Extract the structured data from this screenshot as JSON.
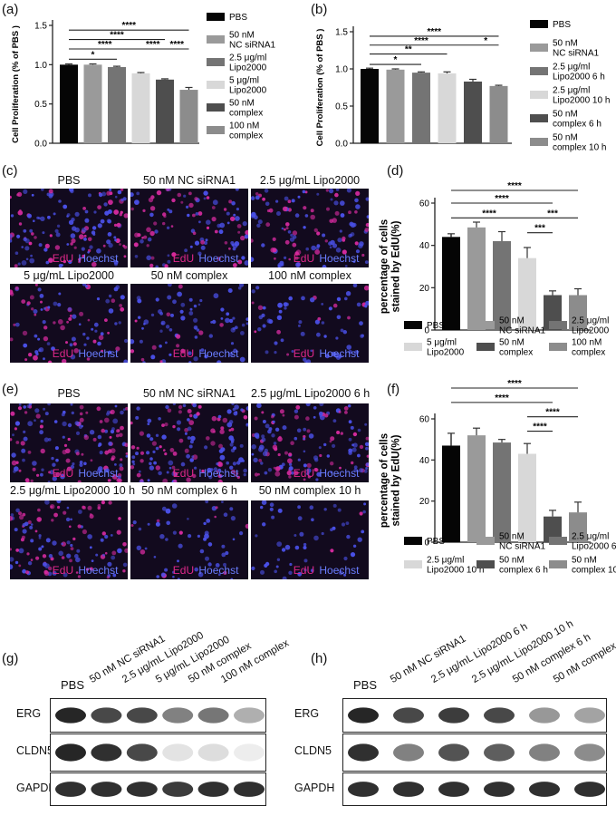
{
  "panels": {
    "a": "(a)",
    "b": "(b)",
    "c": "(c)",
    "d": "(d)",
    "e": "(e)",
    "f": "(f)",
    "g": "(g)",
    "h": "(h)"
  },
  "stain_labels": {
    "edu": "EdU",
    "hoechst": "Hoechst"
  },
  "colors": {
    "black": "#050505",
    "gray1": "#9a9a9a",
    "gray2": "#747474",
    "light": "#d8d8d8",
    "dark": "#4e4e4e",
    "mid": "#8c8c8c"
  },
  "chart_data": [
    {
      "panel": "a",
      "type": "bar",
      "ylabel": "Cell Proliferation (% of PBS )",
      "ylim": [
        0,
        1.5
      ],
      "yticks": [
        "0.0",
        "0.5",
        "1.0",
        "1.5"
      ],
      "values": [
        1.0,
        1.0,
        0.97,
        0.89,
        0.81,
        0.68
      ],
      "errors": [
        0.01,
        0.01,
        0.01,
        0.01,
        0.01,
        0.03
      ],
      "legend": [
        "PBS",
        "50 nM\nNC siRNA1",
        "2.5 μg/ml\nLipo2000",
        "5 μg/ml\nLipo2000",
        "50 nM\ncomplex",
        "100 nM\ncomplex"
      ],
      "significance": [
        {
          "from": 0,
          "to": 5,
          "label": "****",
          "y": 1.44
        },
        {
          "from": 0,
          "to": 4,
          "label": "****",
          "y": 1.32
        },
        {
          "from": 0,
          "to": 3,
          "label": "****",
          "y": 1.2
        },
        {
          "from": 3,
          "to": 4,
          "label": "****",
          "y": 1.2
        },
        {
          "from": 4,
          "to": 5,
          "label": "****",
          "y": 1.2
        },
        {
          "from": 0,
          "to": 2,
          "label": "*",
          "y": 1.07
        }
      ]
    },
    {
      "panel": "b",
      "type": "bar",
      "ylabel": "Cell Proliferation (% of PBS )",
      "ylim": [
        0,
        1.5
      ],
      "yticks": [
        "0.0",
        "0.5",
        "1.0",
        "1.5"
      ],
      "values": [
        1.0,
        0.99,
        0.95,
        0.94,
        0.83,
        0.77
      ],
      "errors": [
        0.01,
        0.01,
        0.01,
        0.02,
        0.03,
        0.01
      ],
      "legend": [
        "PBS",
        "50 nM\nNC siRNA1",
        "2.5 μg/ml\nLipo2000 6 h",
        "2.5 μg/ml\nLipo2000 10 h",
        "50 nM\ncomplex 6 h",
        "50 nM\ncomplex 10 h"
      ],
      "significance": [
        {
          "from": 0,
          "to": 5,
          "label": "****",
          "y": 1.44
        },
        {
          "from": 0,
          "to": 4,
          "label": "****",
          "y": 1.32
        },
        {
          "from": 4,
          "to": 5,
          "label": "*",
          "y": 1.32
        },
        {
          "from": 0,
          "to": 3,
          "label": "**",
          "y": 1.2
        },
        {
          "from": 0,
          "to": 2,
          "label": "*",
          "y": 1.06
        }
      ]
    },
    {
      "panel": "d",
      "type": "bar",
      "ylabel": "percentage of cells\nstained by EdU(%)",
      "ylim": [
        0,
        60
      ],
      "yticks": [
        "0",
        "20",
        "40",
        "60"
      ],
      "values": [
        44,
        48.5,
        42,
        34,
        16.5,
        16.5
      ],
      "errors": [
        1.5,
        2.5,
        4.5,
        5,
        2,
        3
      ],
      "legend": [
        "PBS",
        "50 nM\nNC siRNA1",
        "2.5 μg/ml\nLipo2000",
        "5 μg/ml\nLipo2000",
        "50 nM\ncomplex",
        "100 nM\ncomplex"
      ],
      "significance": [
        {
          "from": 0,
          "to": 5,
          "label": "****",
          "y": 66
        },
        {
          "from": 0,
          "to": 4,
          "label": "****",
          "y": 60
        },
        {
          "from": 0,
          "to": 3,
          "label": "****",
          "y": 53
        },
        {
          "from": 3,
          "to": 5,
          "label": "***",
          "y": 53
        },
        {
          "from": 3,
          "to": 4,
          "label": "***",
          "y": 46
        }
      ]
    },
    {
      "panel": "f",
      "type": "bar",
      "ylabel": "percentage of cells\nstained by EdU(%)",
      "ylim": [
        0,
        60
      ],
      "yticks": [
        "0",
        "20",
        "40",
        "60"
      ],
      "values": [
        47,
        52,
        48.5,
        43,
        12.5,
        14.5
      ],
      "errors": [
        6,
        3.5,
        1.5,
        5,
        3,
        5
      ],
      "legend": [
        "PBS",
        "50 nM\nNC siRNA1",
        "2.5 μg/ml\nLipo2000 6 h",
        "2.5 μg/ml\nLipo2000 10 h",
        "50 nM\ncomplex 6 h",
        "50 nM\ncomplex 10 h"
      ],
      "significance": [
        {
          "from": 0,
          "to": 5,
          "label": "****",
          "y": 75
        },
        {
          "from": 0,
          "to": 4,
          "label": "****",
          "y": 68
        },
        {
          "from": 3,
          "to": 5,
          "label": "****",
          "y": 61
        },
        {
          "from": 3,
          "to": 4,
          "label": "****",
          "y": 54
        }
      ]
    }
  ],
  "micrographs": {
    "c": [
      "PBS",
      "50 nM NC siRNA1",
      "2.5 μg/mL Lipo2000",
      "5 μg/mL Lipo2000",
      "50 nM complex",
      "100 nM complex"
    ],
    "e": [
      "PBS",
      "50 nM NC siRNA1",
      "2.5 μg/mL Lipo2000 6 h",
      "2.5 μg/mL Lipo2000 10 h",
      "50 nM complex 6 h",
      "50 nM complex 10 h"
    ]
  },
  "blots": {
    "g": {
      "lanes": [
        "PBS",
        "50 nM NC siRNA1",
        "2.5 μg/mL Lipo2000",
        "5 μg/mL Lipo2000",
        "50 nM complex",
        "100 nM complex"
      ],
      "rows": [
        "ERG",
        "CLDN5",
        "GAPDH"
      ]
    },
    "h": {
      "lanes": [
        "PBS",
        "50 nM NC siRNA1",
        "2.5 μg/mL Lipo2000 6 h",
        "2.5 μg/mL Lipo2000 10 h",
        "50 nM complex 6 h",
        "50 nM complex 10 h"
      ],
      "rows": [
        "ERG",
        "CLDN5",
        "GAPDH"
      ]
    }
  }
}
